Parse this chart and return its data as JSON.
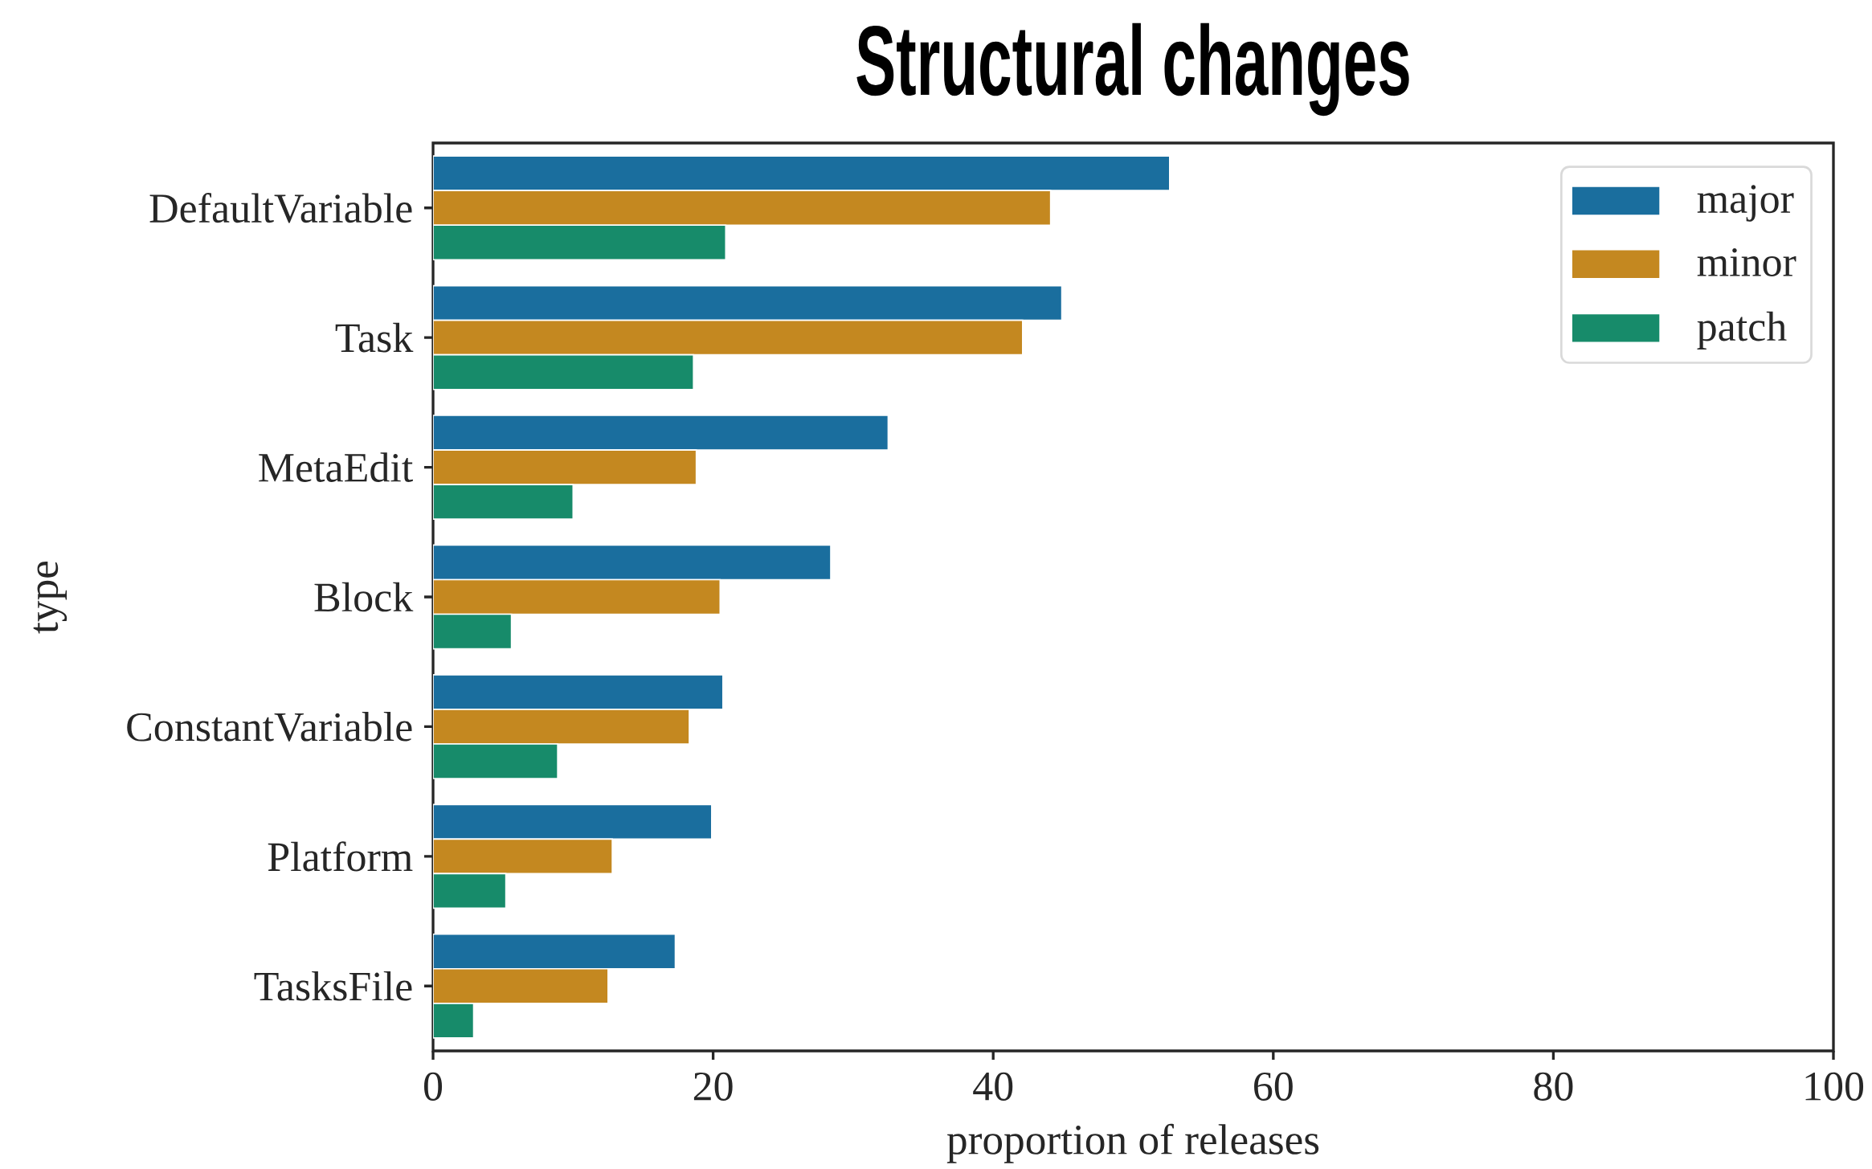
{
  "chart_data": {
    "type": "bar",
    "orientation": "horizontal",
    "title": "Structural changes",
    "xlabel": "proportion of releases",
    "ylabel": "type",
    "categories": [
      "DefaultVariable",
      "Task",
      "MetaEdit",
      "Block",
      "ConstantVariable",
      "Platform",
      "TasksFile"
    ],
    "series": [
      {
        "name": "major",
        "color": "#1a6e9e",
        "values": [
          52.6,
          44.9,
          32.5,
          28.4,
          20.7,
          19.9,
          17.3
        ]
      },
      {
        "name": "minor",
        "color": "#c48820",
        "values": [
          44.1,
          42.1,
          18.8,
          20.5,
          18.3,
          12.8,
          12.5
        ]
      },
      {
        "name": "patch",
        "color": "#178b6a",
        "values": [
          20.9,
          18.6,
          10.0,
          5.6,
          8.9,
          5.2,
          2.9
        ]
      }
    ],
    "xlim": [
      0,
      100
    ],
    "xticks": [
      0,
      20,
      40,
      60,
      80,
      100
    ],
    "legend": "top right"
  }
}
